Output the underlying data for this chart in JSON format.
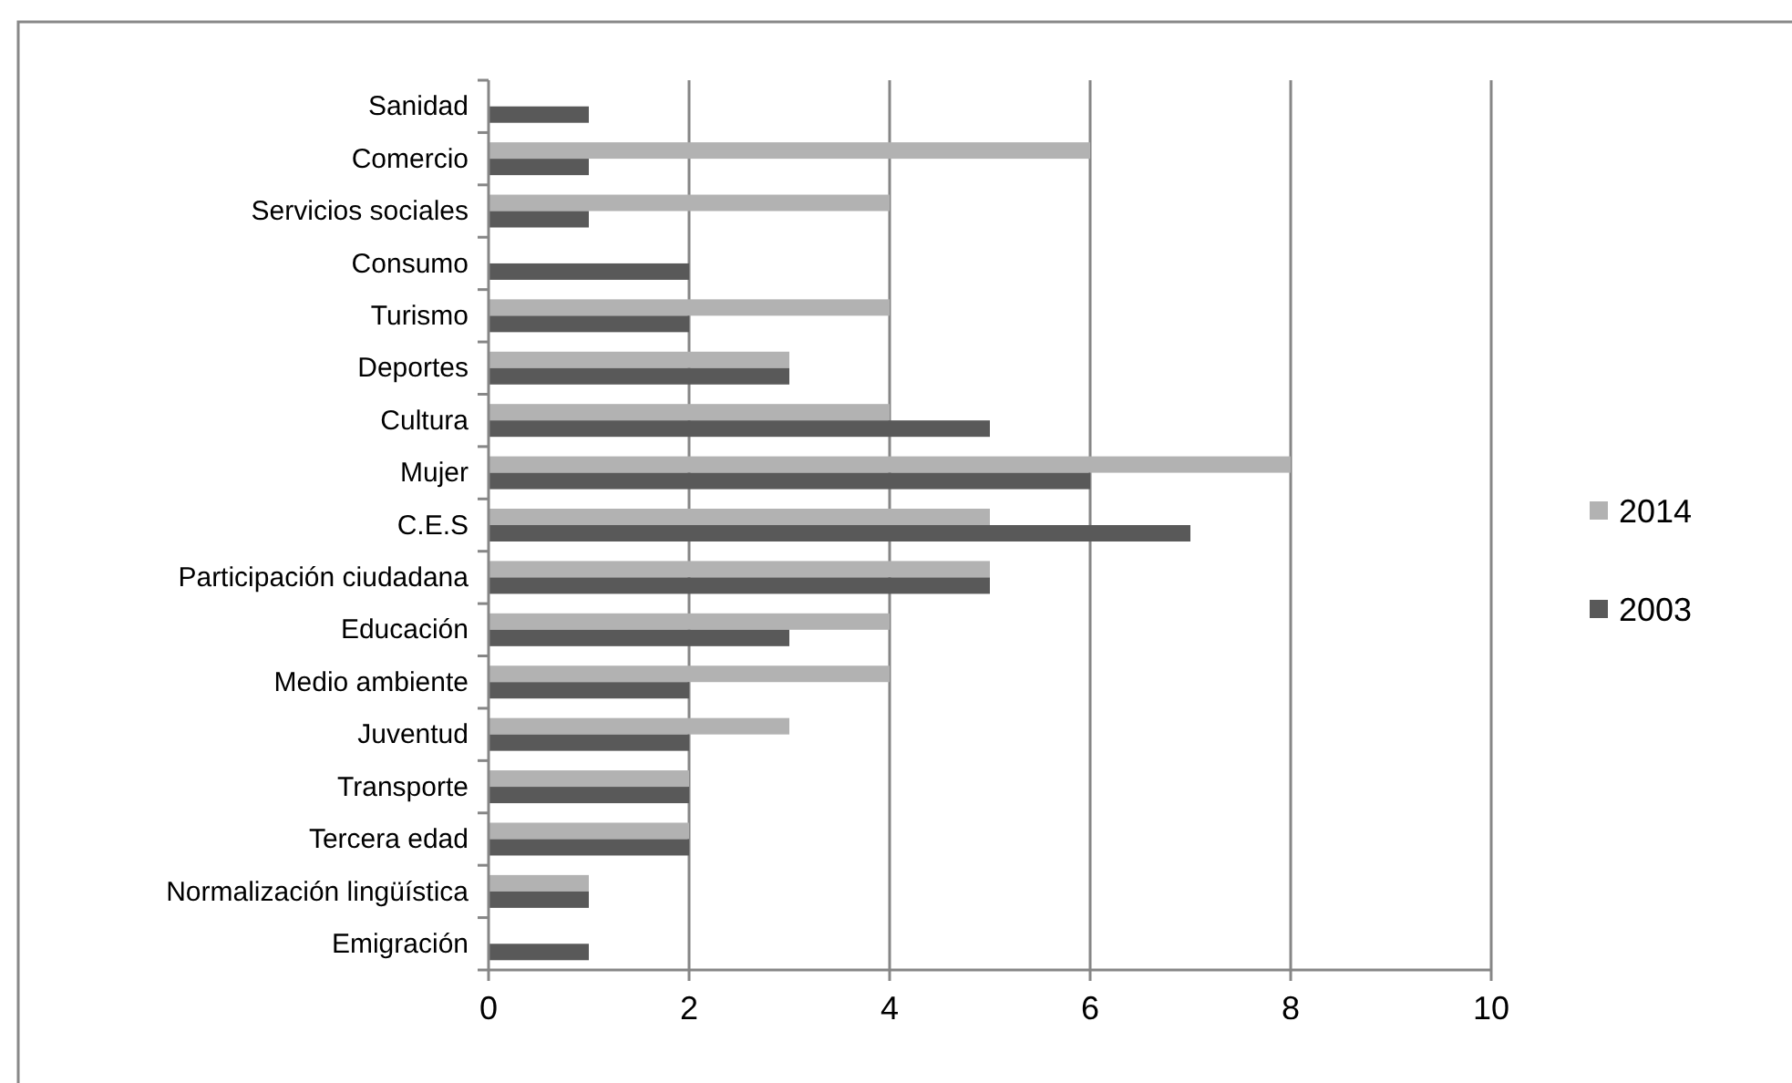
{
  "chart_data": {
    "type": "bar",
    "orientation": "horizontal",
    "categories": [
      "Sanidad",
      "Comercio",
      "Servicios sociales",
      "Consumo",
      "Turismo",
      "Deportes",
      "Cultura",
      "Mujer",
      "C.E.S",
      "Participación ciudadana",
      "Educación",
      "Medio ambiente",
      "Juventud",
      "Transporte",
      "Tercera edad",
      "Normalización lingüística",
      "Emigración"
    ],
    "series": [
      {
        "name": "2014",
        "color": "#b2b2b2",
        "values": [
          null,
          6,
          4,
          null,
          4,
          3,
          4,
          8,
          5,
          5,
          4,
          4,
          3,
          2,
          2,
          1,
          null
        ]
      },
      {
        "name": "2003",
        "color": "#595959",
        "values": [
          1,
          1,
          1,
          2,
          2,
          3,
          5,
          6,
          7,
          5,
          3,
          2,
          2,
          2,
          2,
          1,
          1
        ]
      }
    ],
    "xlim": [
      0,
      10
    ],
    "xticks": [
      0,
      2,
      4,
      6,
      8,
      10
    ],
    "grid": "x",
    "legend": "right"
  }
}
